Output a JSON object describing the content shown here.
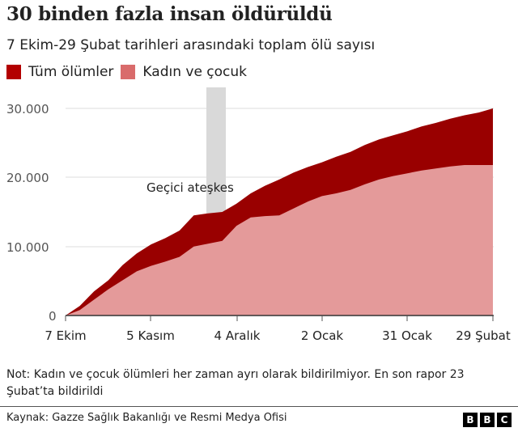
{
  "header": {
    "title": "30 binden fazla insan öldürüldü",
    "subtitle": "7 Ekim-29 Şubat tarihleri arasındaki toplam ölü sayısı"
  },
  "legend": [
    {
      "label": "Tüm ölümler",
      "color": "#990000"
    },
    {
      "label": "Kadın ve çocuk",
      "color": "#d96b6b"
    }
  ],
  "annotation": {
    "label": "Geçici ateşkes",
    "band_color": "#d9d9d9"
  },
  "axes": {
    "y_ticks": [
      "30.000",
      "20.000",
      "10.000",
      "0"
    ],
    "x_ticks": [
      "7 Ekim",
      "5 Kasım",
      "4 Aralık",
      "2 Ocak",
      "31 Ocak",
      "29 Şubat"
    ]
  },
  "footer": {
    "note": "Not: Kadın ve çocuk ölümleri her zaman ayrı olarak bildirilmiyor. En son rapor 23 Şubat’ta bildirildi",
    "source": "Kaynak: Gazze Sağlık Bakanlığı ve Resmi Medya Ofisi",
    "logo": [
      "B",
      "B",
      "C"
    ]
  },
  "chart_data": {
    "type": "area",
    "title": "30 binden fazla insan öldürüldü",
    "subtitle": "7 Ekim-29 Şubat tarihleri arasındaki toplam ölü sayısı",
    "xlabel": "",
    "ylabel": "",
    "ylim": [
      0,
      30000
    ],
    "y_ticks": [
      0,
      10000,
      20000,
      30000
    ],
    "x_tick_labels": [
      "7 Ekim",
      "5 Kasım",
      "4 Aralık",
      "2 Ocak",
      "31 Ocak",
      "29 Şubat"
    ],
    "grid": true,
    "legend_position": "top-left",
    "annotations": [
      {
        "label": "Geçici ateşkes",
        "type": "shaded-band",
        "x_range": [
          "24 Kasım",
          "30 Kasım"
        ]
      }
    ],
    "x": [
      "7 Ekim",
      "12 Ekim",
      "17 Ekim",
      "22 Ekim",
      "27 Ekim",
      "1 Kasım",
      "5 Kasım",
      "10 Kasım",
      "15 Kasım",
      "20 Kasım",
      "24 Kasım",
      "30 Kasım",
      "4 Aralık",
      "9 Aralık",
      "14 Aralık",
      "19 Aralık",
      "24 Aralık",
      "29 Aralık",
      "2 Ocak",
      "7 Ocak",
      "12 Ocak",
      "17 Ocak",
      "22 Ocak",
      "26 Ocak",
      "31 Ocak",
      "5 Şubat",
      "10 Şubat",
      "15 Şubat",
      "20 Şubat",
      "25 Şubat",
      "29 Şubat"
    ],
    "series": [
      {
        "name": "Tüm ölümler",
        "color": "#990000",
        "values": [
          0,
          1400,
          3500,
          5100,
          7300,
          9000,
          10300,
          11200,
          12300,
          14500,
          14800,
          15000,
          16200,
          17700,
          18800,
          19700,
          20700,
          21500,
          22200,
          23000,
          23700,
          24700,
          25500,
          26100,
          26700,
          27400,
          27900,
          28500,
          29000,
          29400,
          30000
        ]
      },
      {
        "name": "Kadın ve çocuk",
        "color": "#e49a9a",
        "values": [
          0,
          800,
          2300,
          3800,
          5100,
          6400,
          7200,
          7800,
          8500,
          10000,
          10400,
          10800,
          13000,
          14200,
          14400,
          14500,
          15500,
          16500,
          17300,
          17700,
          18200,
          19000,
          19700,
          20200,
          20600,
          21000,
          21300,
          21600,
          21800,
          21800,
          21800
        ]
      }
    ]
  }
}
